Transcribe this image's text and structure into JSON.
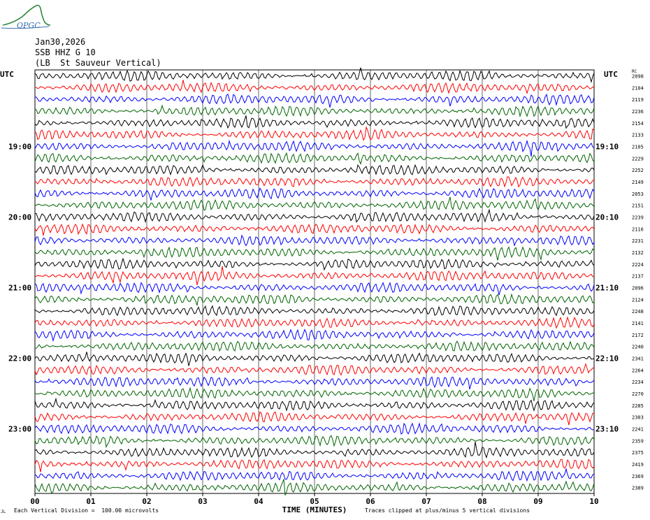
{
  "header": {
    "logo_text": "OPGC",
    "date": "Jan30,2026",
    "channel": "SSB HHZ G 10",
    "station": "(LB  St Sauveur Vertical)"
  },
  "axes": {
    "left_label": "UTC",
    "right_label": "UTC",
    "rc_label": "RC",
    "x_title": "TIME (MINUTES)"
  },
  "footer": {
    "scale_note": "Each Vertical Division =  100.00 microvolts",
    "clip_note": "Traces clipped at plus/minus 5 vertical divisions",
    "corner_mark": "JL"
  },
  "colors": {
    "trace_cycle": [
      "#000000",
      "#ff0000",
      "#0000ff",
      "#006400"
    ],
    "grid": "#000000",
    "logo": "#2e8b3e"
  },
  "chart_data": {
    "type": "line",
    "title": "SSB HHZ G 10 (LB  St Sauveur Vertical)",
    "xlabel": "TIME (MINUTES)",
    "ylabel": "UTC",
    "xlim": [
      0,
      10
    ],
    "x_ticks": [
      "00",
      "01",
      "02",
      "03",
      "04",
      "05",
      "06",
      "07",
      "08",
      "09",
      "10"
    ],
    "rows_per_hour": 6,
    "minutes_per_row": 10,
    "first_row_start": "18:30",
    "left_time_labels": [
      {
        "row": 6,
        "label": "19:00"
      },
      {
        "row": 12,
        "label": "20:00"
      },
      {
        "row": 18,
        "label": "21:00"
      },
      {
        "row": 24,
        "label": "22:00"
      },
      {
        "row": 30,
        "label": "23:00"
      }
    ],
    "right_time_labels": [
      {
        "row": 6,
        "label": "19:10"
      },
      {
        "row": 12,
        "label": "20:10"
      },
      {
        "row": 18,
        "label": "21:10"
      },
      {
        "row": 24,
        "label": "22:10"
      },
      {
        "row": 30,
        "label": "23:10"
      }
    ],
    "rc_values": [
      "2098",
      "2104",
      "2119",
      "2236",
      "2154",
      "2133",
      "2105",
      "2229",
      "2252",
      "2149",
      "2053",
      "2151",
      "2239",
      "2116",
      "2231",
      "2132",
      "2224",
      "2137",
      "2096",
      "2124",
      "2248",
      "2141",
      "2172",
      "2240",
      "2341",
      "2264",
      "2234",
      "2270",
      "2285",
      "2303",
      "2241",
      "2359",
      "2375",
      "2419",
      "2369",
      "2389"
    ],
    "trace_amplitude_scale": "plus/minus 5 vertical divisions",
    "grid": true
  }
}
